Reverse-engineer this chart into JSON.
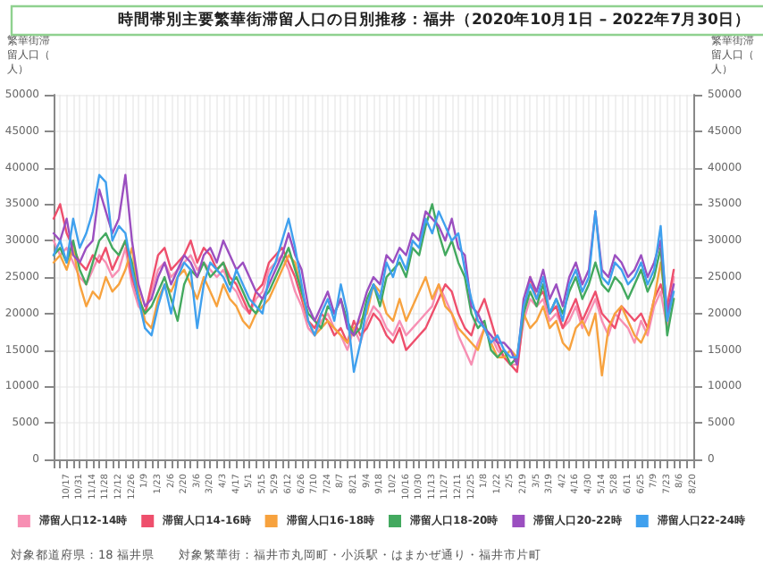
{
  "chart_data": {
    "type": "line",
    "title": "時間帯別主要繁華街滞留人口の日別推移：福井（2020年10月1日 – 2022年7月30日）",
    "ylabel": "繁華街滞留人口（人）",
    "y2label": "繁華街滞留人口（人）",
    "categories": [
      null,
      null,
      "10/17",
      null,
      "10/31",
      null,
      "11/14",
      null,
      "11/28",
      null,
      "12/12",
      null,
      "12/26",
      null,
      "1/9",
      null,
      "1/23",
      null,
      "2/6",
      null,
      "2/20",
      null,
      "3/6",
      null,
      "3/20",
      null,
      "4/3",
      null,
      "4/17",
      null,
      "5/1",
      null,
      "5/15",
      null,
      "5/29",
      null,
      "6/12",
      null,
      "6/26",
      null,
      "7/10",
      null,
      "7/24",
      null,
      "8/7",
      null,
      "8/21",
      null,
      "9/4",
      null,
      "9/18",
      null,
      "10/2",
      null,
      "10/16",
      null,
      "10/30",
      null,
      "11/13",
      null,
      "11/27",
      null,
      "12/11",
      null,
      "12/25",
      null,
      "1/8",
      null,
      "1/22",
      null,
      "2/5",
      null,
      "2/19",
      null,
      "3/5",
      null,
      "3/19",
      null,
      "4/2",
      null,
      "4/16",
      null,
      "4/30",
      null,
      "5/14",
      null,
      "5/28",
      null,
      "6/11",
      null,
      "6/25",
      null,
      "7/9",
      null,
      "7/23",
      null,
      "8/6",
      null,
      "8/20"
    ],
    "series": [
      {
        "name": "滞留人口12-14時",
        "color": "#f78fb3",
        "values": [
          30000,
          28000,
          29000,
          27000,
          25000,
          24000,
          26000,
          28000,
          27000,
          25000,
          26000,
          29000,
          24000,
          21000,
          20000,
          23000,
          26000,
          27000,
          25000,
          26000,
          27000,
          28000,
          26000,
          27000,
          26000,
          25000,
          26000,
          24000,
          23000,
          21000,
          20000,
          22000,
          23000,
          26000,
          27000,
          28000,
          26000,
          23000,
          21000,
          18000,
          17000,
          19000,
          20000,
          18000,
          17000,
          15000,
          18000,
          16000,
          19000,
          21000,
          20000,
          18000,
          17000,
          19000,
          17000,
          18000,
          19000,
          20000,
          21000,
          24000,
          22000,
          20000,
          17000,
          15000,
          13000,
          16000,
          18000,
          17000,
          15000,
          14000,
          13000,
          13000,
          19000,
          22000,
          21000,
          22000,
          19000,
          20000,
          18000,
          19000,
          21000,
          18000,
          20000,
          22000,
          19000,
          17000,
          20000,
          19000,
          18000,
          16000,
          19000,
          17000,
          21000,
          23000,
          18000,
          25000,
          null,
          null,
          null
        ]
      },
      {
        "name": "滞留人口14-16時",
        "color": "#ee4f6c",
        "values": [
          33000,
          35000,
          31000,
          29000,
          27000,
          26000,
          28000,
          27000,
          29000,
          26000,
          28000,
          30000,
          25000,
          22000,
          20000,
          24000,
          28000,
          29000,
          26000,
          27000,
          28000,
          30000,
          27000,
          29000,
          28000,
          26000,
          27000,
          25000,
          24000,
          22000,
          20000,
          23000,
          24000,
          27000,
          28000,
          29000,
          27000,
          25000,
          22000,
          19000,
          18000,
          20000,
          19000,
          17000,
          18000,
          16000,
          19000,
          17000,
          18000,
          20000,
          19000,
          17000,
          16000,
          18000,
          15000,
          16000,
          17000,
          18000,
          20000,
          22000,
          24000,
          23000,
          20000,
          18000,
          17000,
          20000,
          22000,
          19000,
          16000,
          14000,
          13000,
          12000,
          20000,
          25000,
          22000,
          23000,
          20000,
          21000,
          18000,
          20000,
          22000,
          19000,
          21000,
          23000,
          20000,
          19000,
          18000,
          21000,
          20000,
          19000,
          20000,
          18000,
          22000,
          24000,
          21000,
          26000,
          null,
          null,
          null
        ]
      },
      {
        "name": "滞留人口16-18時",
        "color": "#f7a23e",
        "values": [
          27000,
          28000,
          26000,
          29000,
          24000,
          21000,
          23000,
          22000,
          25000,
          23000,
          24000,
          26000,
          29000,
          23000,
          19000,
          18000,
          22000,
          24000,
          23000,
          25000,
          26000,
          24000,
          22000,
          25000,
          23000,
          21000,
          24000,
          22000,
          21000,
          19000,
          18000,
          20000,
          21000,
          22000,
          24000,
          26000,
          28000,
          27000,
          23000,
          19000,
          17000,
          18000,
          19000,
          18000,
          17000,
          16000,
          18000,
          19000,
          20000,
          24000,
          23000,
          20000,
          19000,
          22000,
          19000,
          21000,
          23000,
          25000,
          22000,
          24000,
          21000,
          20000,
          18000,
          17000,
          16000,
          15000,
          18000,
          16000,
          14000,
          14000,
          15000,
          14000,
          20000,
          18000,
          19000,
          21000,
          18000,
          19000,
          16000,
          15000,
          18000,
          19000,
          17000,
          20000,
          11500,
          18000,
          20000,
          21000,
          19000,
          17000,
          16000,
          18000,
          22000,
          27000,
          20000,
          22000,
          null,
          null,
          null
        ]
      },
      {
        "name": "滞留人口18-20時",
        "color": "#43a95f",
        "values": [
          28000,
          29000,
          27000,
          30000,
          26000,
          24000,
          27000,
          30000,
          31000,
          29000,
          28000,
          30000,
          27000,
          22000,
          20000,
          21000,
          23000,
          25000,
          22000,
          19000,
          24000,
          26000,
          25000,
          27000,
          25000,
          26000,
          27000,
          24000,
          25000,
          23000,
          21000,
          20000,
          22000,
          23000,
          25000,
          27000,
          29000,
          26000,
          23000,
          20000,
          19000,
          18000,
          21000,
          20000,
          22000,
          19000,
          17000,
          18000,
          22000,
          24000,
          21000,
          25000,
          26000,
          27000,
          25000,
          29000,
          28000,
          32000,
          35000,
          31000,
          28000,
          30000,
          27000,
          25000,
          20000,
          18000,
          19000,
          15000,
          14000,
          15000,
          13000,
          14000,
          20000,
          23000,
          21000,
          24000,
          20000,
          22000,
          20000,
          23000,
          25000,
          22000,
          24000,
          27000,
          24000,
          23000,
          25000,
          24000,
          22000,
          24000,
          26000,
          23000,
          25000,
          29000,
          17000,
          22000,
          null,
          null,
          null
        ]
      },
      {
        "name": "滞留人口20-22時",
        "color": "#9b4fc0",
        "values": [
          31000,
          30000,
          33000,
          28000,
          27000,
          29000,
          30000,
          37000,
          34000,
          31000,
          33000,
          39000,
          30000,
          24000,
          21000,
          22000,
          25000,
          27000,
          24000,
          26000,
          28000,
          27000,
          25000,
          28000,
          29000,
          27000,
          30000,
          28000,
          26000,
          27000,
          25000,
          23000,
          22000,
          24000,
          26000,
          28000,
          31000,
          28000,
          26000,
          21000,
          19000,
          21000,
          23000,
          20000,
          22000,
          18000,
          17000,
          20000,
          23000,
          25000,
          24000,
          28000,
          27000,
          29000,
          28000,
          31000,
          30000,
          34000,
          33000,
          32000,
          30000,
          33000,
          29000,
          28000,
          21000,
          20000,
          18000,
          17000,
          16000,
          16000,
          15000,
          13000,
          22000,
          25000,
          23000,
          26000,
          22000,
          24000,
          21000,
          25000,
          27000,
          24000,
          26000,
          34000,
          26000,
          25000,
          28000,
          27000,
          25000,
          26000,
          28000,
          25000,
          27000,
          30000,
          20000,
          24000,
          null,
          null,
          null
        ]
      },
      {
        "name": "滞留人口22-24時",
        "color": "#3fa0ee",
        "values": [
          28000,
          30000,
          27000,
          33000,
          29000,
          31000,
          34000,
          39000,
          38000,
          30000,
          32000,
          31000,
          26000,
          22000,
          18000,
          17000,
          21000,
          24000,
          20000,
          25000,
          27000,
          26000,
          18000,
          24000,
          27000,
          26000,
          25000,
          23000,
          26000,
          24000,
          22000,
          21000,
          20000,
          25000,
          27000,
          30000,
          33000,
          29000,
          24000,
          19000,
          17000,
          20000,
          22000,
          19000,
          24000,
          20000,
          12000,
          16000,
          21000,
          24000,
          22000,
          27000,
          25000,
          28000,
          26000,
          30000,
          29000,
          33000,
          31000,
          34000,
          32000,
          30000,
          31000,
          26000,
          22000,
          19000,
          18000,
          16000,
          17000,
          15000,
          14000,
          14000,
          21000,
          24000,
          22000,
          25000,
          20000,
          22000,
          19000,
          24000,
          26000,
          23000,
          25000,
          34000,
          25000,
          24000,
          27000,
          26000,
          24000,
          25000,
          27000,
          24000,
          26000,
          32000,
          19000,
          23000,
          null,
          null,
          null
        ]
      }
    ],
    "ylim": [
      0,
      50000
    ],
    "yticks": [
      0,
      5000,
      10000,
      15000,
      20000,
      25000,
      30000,
      35000,
      40000,
      45000,
      50000
    ],
    "y2lim": [
      0,
      50000
    ],
    "y2ticks": [
      0,
      5000,
      10000,
      15000,
      20000,
      25000,
      30000,
      35000,
      40000,
      45000,
      50000
    ],
    "grid": true,
    "legend": "bottom",
    "marker": "none",
    "line_style": "solid",
    "annotations": [
      "対象都道府県：18 福井県",
      "対象繁華街：福井市丸岡町・小浜駅・はまかぜ通り・福井市片町"
    ]
  }
}
